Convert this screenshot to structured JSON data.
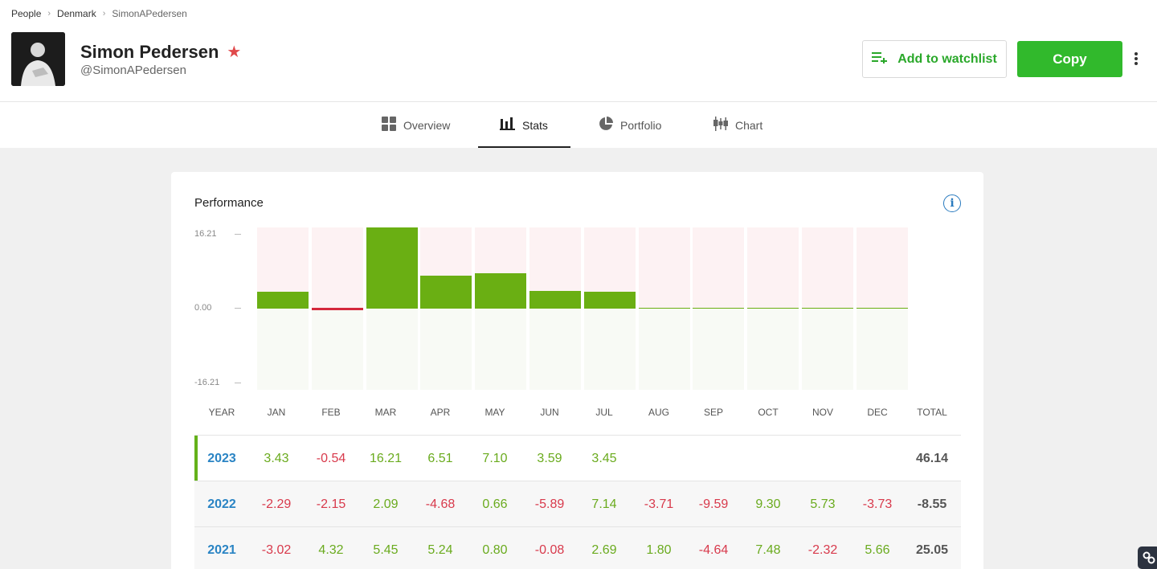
{
  "breadcrumb": [
    "People",
    "Denmark",
    "SimonAPedersen"
  ],
  "profile": {
    "name": "Simon Pedersen",
    "handle": "@SimonAPedersen"
  },
  "actions": {
    "watchlist_label": "Add to watchlist",
    "copy_label": "Copy"
  },
  "tabs": [
    {
      "label": "Overview",
      "icon": "grid-icon"
    },
    {
      "label": "Stats",
      "icon": "bar-chart-icon",
      "active": true
    },
    {
      "label": "Portfolio",
      "icon": "pie-chart-icon"
    },
    {
      "label": "Chart",
      "icon": "candlestick-icon"
    }
  ],
  "performance": {
    "title": "Performance",
    "columns": [
      "YEAR",
      "JAN",
      "FEB",
      "MAR",
      "APR",
      "MAY",
      "JUN",
      "JUL",
      "AUG",
      "SEP",
      "OCT",
      "NOV",
      "DEC",
      "TOTAL"
    ],
    "rows": [
      {
        "year": "2023",
        "months": [
          "3.43",
          "-0.54",
          "16.21",
          "6.51",
          "7.10",
          "3.59",
          "3.45",
          "",
          "",
          "",
          "",
          ""
        ],
        "total": "46.14"
      },
      {
        "year": "2022",
        "months": [
          "-2.29",
          "-2.15",
          "2.09",
          "-4.68",
          "0.66",
          "-5.89",
          "7.14",
          "-3.71",
          "-9.59",
          "9.30",
          "5.73",
          "-3.73"
        ],
        "total": "-8.55"
      },
      {
        "year": "2021",
        "months": [
          "-3.02",
          "4.32",
          "5.45",
          "5.24",
          "0.80",
          "-0.08",
          "2.69",
          "1.80",
          "-4.64",
          "7.48",
          "-2.32",
          "5.66"
        ],
        "total": "25.05"
      }
    ]
  },
  "chart_data": {
    "type": "bar",
    "categories": [
      "JAN",
      "FEB",
      "MAR",
      "APR",
      "MAY",
      "JUN",
      "JUL",
      "AUG",
      "SEP",
      "OCT",
      "NOV",
      "DEC"
    ],
    "values": [
      3.43,
      -0.54,
      16.21,
      6.51,
      7.1,
      3.59,
      3.45,
      0,
      0,
      0,
      0,
      0
    ],
    "y_tick_labels": [
      "16.21",
      "0.00",
      "-16.21"
    ],
    "ylim": [
      -16.21,
      16.21
    ],
    "colors": {
      "positive": "#6aaf13",
      "negative": "#d4283b",
      "pos_bg": "#fdf2f3",
      "neg_bg": "#f8faf5"
    }
  }
}
